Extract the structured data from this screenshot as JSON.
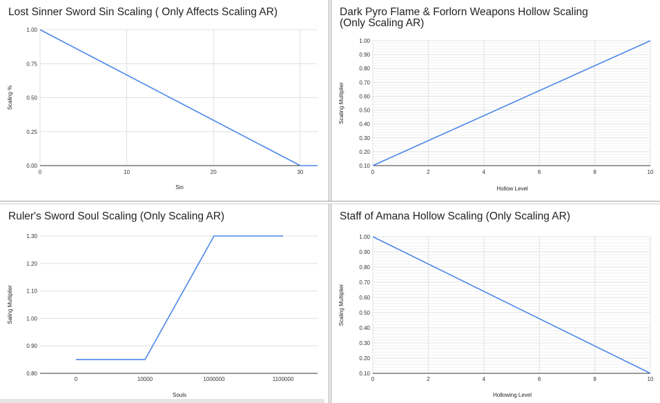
{
  "chart_data": [
    {
      "type": "line",
      "title": "Lost Sinner Sword Sin Scaling ( Only Affects Scaling AR)",
      "xlabel": "Sin",
      "ylabel": "Scaling %",
      "x_ticks": [
        "0",
        "10",
        "20",
        "30"
      ],
      "y_ticks": [
        "0.00",
        "0.25",
        "0.50",
        "0.75",
        "1.00"
      ],
      "xlim": [
        0,
        32
      ],
      "ylim": [
        0,
        1
      ],
      "grid": true,
      "series": [
        {
          "x": [
            0,
            30,
            32
          ],
          "y": [
            1.0,
            0.0,
            0.0
          ]
        }
      ]
    },
    {
      "type": "line",
      "title": "Dark Pyro Flame & Forlorn Weapons Hollow Scaling\n(Only Scaling AR)",
      "xlabel": "Hollow Level",
      "ylabel": "Scaling Multiplier",
      "x_ticks": [
        "0",
        "2",
        "4",
        "6",
        "8",
        "10"
      ],
      "y_ticks": [
        "0.10",
        "0.20",
        "0.30",
        "0.40",
        "0.50",
        "0.60",
        "0.70",
        "0.80",
        "0.90",
        "1.00"
      ],
      "xlim": [
        0,
        10
      ],
      "ylim": [
        0.1,
        1.0
      ],
      "grid": true,
      "series": [
        {
          "x": [
            0,
            10
          ],
          "y": [
            0.1,
            1.0
          ]
        }
      ]
    },
    {
      "type": "line",
      "title": "Ruler's Sword Soul Scaling (Only Scaling AR)",
      "xlabel": "Souls",
      "ylabel": "Saling Multiplier",
      "categories": [
        "0",
        "10000",
        "1000000",
        "1100000"
      ],
      "y_ticks": [
        "0.80",
        "0.90",
        "1.00",
        "1.10",
        "1.20",
        "1.30"
      ],
      "ylim": [
        0.8,
        1.3
      ],
      "grid": false,
      "series": [
        {
          "x": [
            0,
            10000,
            1000000,
            1100000
          ],
          "y": [
            0.85,
            0.85,
            1.3,
            1.3
          ]
        }
      ]
    },
    {
      "type": "line",
      "title": "Staff of Amana Hollow Scaling (Only Scaling AR)",
      "xlabel": "Hollowing Level",
      "ylabel": "Scaling Multiplier",
      "x_ticks": [
        "0",
        "2",
        "4",
        "6",
        "8",
        "10"
      ],
      "y_ticks": [
        "0.10",
        "0.20",
        "0.30",
        "0.40",
        "0.50",
        "0.60",
        "0.70",
        "0.80",
        "0.90",
        "1.00"
      ],
      "xlim": [
        0,
        10
      ],
      "ylim": [
        0.1,
        1.0
      ],
      "grid": true,
      "series": [
        {
          "x": [
            0,
            10
          ],
          "y": [
            1.0,
            0.1
          ]
        }
      ]
    }
  ],
  "colors": {
    "line": "#4a86e8",
    "grid": "#e0e0e0",
    "axis": "#333333"
  }
}
